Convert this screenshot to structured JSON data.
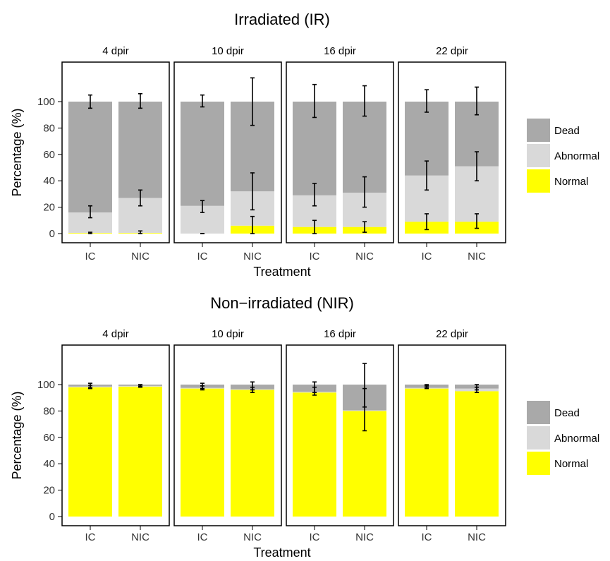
{
  "colors": {
    "Dead": "#a9a9a9",
    "Abnormal": "#d9d9d9",
    "Normal": "#ffff00",
    "error_bar": "#000000",
    "panel_border": "#000000"
  },
  "chart_data": [
    {
      "type": "bar",
      "stacked": true,
      "title": "Irradiated (IR)",
      "xlabel": "Treatment",
      "ylabel": "Percentage (%)",
      "ylim": [
        -5,
        125
      ],
      "yticks": [
        "0",
        "20",
        "40",
        "60",
        "80",
        "100"
      ],
      "grid": false,
      "legend": {
        "position": "right",
        "entries": [
          "Dead",
          "Abnormal",
          "Normal"
        ]
      },
      "panels": [
        {
          "label": "4 dpir",
          "bars": [
            {
              "category": "IC",
              "Normal": 0.5,
              "Abnormal": 15.5,
              "Dead": 84,
              "err_normal": [
                0,
                1
              ],
              "err_abnormal": [
                12,
                21
              ],
              "err_dead": [
                95,
                105
              ]
            },
            {
              "category": "NIC",
              "Normal": 0.5,
              "Abnormal": 26.5,
              "Dead": 73,
              "err_normal": [
                0,
                2
              ],
              "err_abnormal": [
                21,
                33
              ],
              "err_dead": [
                95,
                106
              ]
            }
          ]
        },
        {
          "label": "10 dpir",
          "bars": [
            {
              "category": "IC",
              "Normal": 0,
              "Abnormal": 21,
              "Dead": 79,
              "err_normal": [
                0,
                0
              ],
              "err_abnormal": [
                16,
                25
              ],
              "err_dead": [
                96,
                105
              ]
            },
            {
              "category": "NIC",
              "Normal": 6,
              "Abnormal": 26,
              "Dead": 68,
              "err_normal": [
                0,
                13
              ],
              "err_abnormal": [
                18,
                46
              ],
              "err_dead": [
                82,
                118
              ]
            }
          ]
        },
        {
          "label": "16 dpir",
          "bars": [
            {
              "category": "IC",
              "Normal": 5,
              "Abnormal": 24,
              "Dead": 71,
              "err_normal": [
                0,
                10
              ],
              "err_abnormal": [
                21,
                38
              ],
              "err_dead": [
                88,
                113
              ]
            },
            {
              "category": "NIC",
              "Normal": 5,
              "Abnormal": 26,
              "Dead": 69,
              "err_normal": [
                1,
                9
              ],
              "err_abnormal": [
                20,
                43
              ],
              "err_dead": [
                89,
                112
              ]
            }
          ]
        },
        {
          "label": "22 dpir",
          "bars": [
            {
              "category": "IC",
              "Normal": 9,
              "Abnormal": 35,
              "Dead": 56,
              "err_normal": [
                3,
                15
              ],
              "err_abnormal": [
                33,
                55
              ],
              "err_dead": [
                92,
                109
              ]
            },
            {
              "category": "NIC",
              "Normal": 9,
              "Abnormal": 42,
              "Dead": 49,
              "err_normal": [
                4,
                15
              ],
              "err_abnormal": [
                40,
                62
              ],
              "err_dead": [
                90,
                111
              ]
            }
          ]
        }
      ]
    },
    {
      "type": "bar",
      "stacked": true,
      "title": "Non−irradiated (NIR)",
      "xlabel": "Treatment",
      "ylabel": "Percentage (%)",
      "ylim": [
        -5,
        125
      ],
      "yticks": [
        "0",
        "20",
        "40",
        "60",
        "80",
        "100"
      ],
      "grid": false,
      "legend": {
        "position": "right",
        "entries": [
          "Dead",
          "Abnormal",
          "Normal"
        ]
      },
      "panels": [
        {
          "label": "4 dpir",
          "bars": [
            {
              "category": "IC",
              "Normal": 98,
              "Abnormal": 0.5,
              "Dead": 1.5,
              "err_normal": [
                97,
                99.5
              ],
              "err_dead": [
                98,
                101
              ]
            },
            {
              "category": "NIC",
              "Normal": 98.5,
              "Abnormal": 0.5,
              "Dead": 1,
              "err_normal": [
                98,
                99.5
              ],
              "err_dead": [
                98.5,
                100
              ]
            }
          ]
        },
        {
          "label": "10 dpir",
          "bars": [
            {
              "category": "IC",
              "Normal": 97,
              "Abnormal": 0.5,
              "Dead": 2.5,
              "err_normal": [
                96,
                99
              ],
              "err_dead": [
                97,
                101
              ]
            },
            {
              "category": "NIC",
              "Normal": 96,
              "Abnormal": 0.5,
              "Dead": 3.5,
              "err_normal": [
                94,
                98
              ],
              "err_dead": [
                96,
                102
              ]
            }
          ]
        },
        {
          "label": "16 dpir",
          "bars": [
            {
              "category": "IC",
              "Normal": 94,
              "Abnormal": 0.5,
              "Dead": 5.5,
              "err_normal": [
                92,
                98
              ],
              "err_dead": [
                94,
                102
              ]
            },
            {
              "category": "NIC",
              "Normal": 80,
              "Abnormal": 0.5,
              "Dead": 19.5,
              "err_normal": [
                65,
                97
              ],
              "err_dead": [
                83,
                116
              ]
            }
          ]
        },
        {
          "label": "22 dpir",
          "bars": [
            {
              "category": "IC",
              "Normal": 97,
              "Abnormal": 0.5,
              "Dead": 2.5,
              "err_normal": [
                97,
                99
              ],
              "err_dead": [
                98,
                100
              ]
            },
            {
              "category": "NIC",
              "Normal": 95,
              "Abnormal": 2,
              "Dead": 3,
              "err_normal": [
                94,
                98
              ],
              "err_dead": [
                96,
                100
              ]
            }
          ]
        }
      ]
    }
  ]
}
